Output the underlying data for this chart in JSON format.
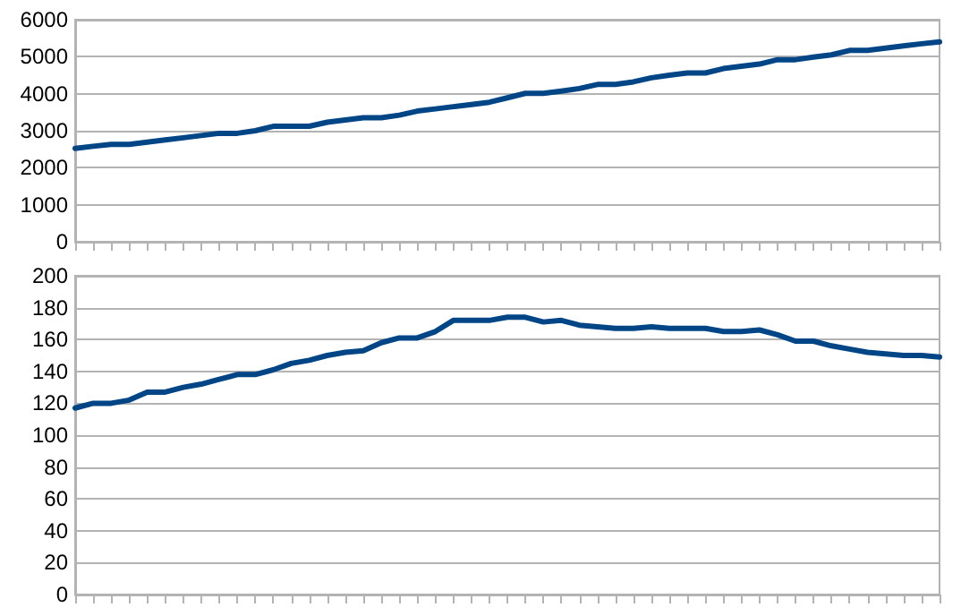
{
  "chart_data": [
    {
      "type": "line",
      "categories": [
        null,
        null,
        null,
        null,
        null,
        null,
        null,
        null,
        null,
        null,
        null,
        null,
        null,
        null,
        null,
        null,
        null,
        null,
        null,
        null,
        null,
        null,
        null,
        null,
        null,
        null,
        null,
        null,
        null,
        null,
        null,
        null,
        null,
        null,
        null,
        null,
        null,
        null,
        null,
        null,
        null,
        null,
        null,
        null,
        null,
        null,
        null,
        null,
        null
      ],
      "series": [
        {
          "color": "#004586",
          "values": [
            2520,
            2580,
            2630,
            2630,
            2690,
            2750,
            2810,
            2870,
            2930,
            2930,
            3000,
            3120,
            3120,
            3120,
            3230,
            3290,
            3350,
            3350,
            3420,
            3530,
            3590,
            3650,
            3710,
            3770,
            3890,
            4010,
            4010,
            4070,
            4140,
            4250,
            4250,
            4320,
            4430,
            4500,
            4560,
            4560,
            4680,
            4740,
            4800,
            4920,
            4920,
            4990,
            5050,
            5170,
            5170,
            5230,
            5290,
            5350,
            5400
          ]
        }
      ],
      "ylim": [
        0,
        6000
      ],
      "yticks": [
        0,
        1000,
        2000,
        3000,
        4000,
        5000,
        6000
      ],
      "grid": "y",
      "tick_labels": "y",
      "marker": "none",
      "line_style": "solid"
    },
    {
      "type": "line",
      "categories": [
        null,
        null,
        null,
        null,
        null,
        null,
        null,
        null,
        null,
        null,
        null,
        null,
        null,
        null,
        null,
        null,
        null,
        null,
        null,
        null,
        null,
        null,
        null,
        null,
        null,
        null,
        null,
        null,
        null,
        null,
        null,
        null,
        null,
        null,
        null,
        null,
        null,
        null,
        null,
        null,
        null,
        null,
        null,
        null,
        null,
        null,
        null,
        null,
        null
      ],
      "series": [
        {
          "color": "#004586",
          "values": [
            117,
            120,
            120,
            122,
            127,
            127,
            130,
            132,
            135,
            138,
            138,
            141,
            145,
            147,
            150,
            152,
            153,
            158,
            161,
            161,
            165,
            172,
            172,
            172,
            174,
            174,
            171,
            172,
            169,
            168,
            167,
            167,
            168,
            167,
            167,
            167,
            165,
            165,
            166,
            163,
            159,
            159,
            156,
            154,
            152,
            151,
            150,
            150,
            149
          ]
        }
      ],
      "ylim": [
        0,
        200
      ],
      "yticks": [
        0,
        20,
        40,
        60,
        80,
        100,
        120,
        140,
        160,
        180,
        200
      ],
      "grid": "y",
      "tick_labels": "y",
      "marker": "none",
      "line_style": "solid"
    }
  ]
}
